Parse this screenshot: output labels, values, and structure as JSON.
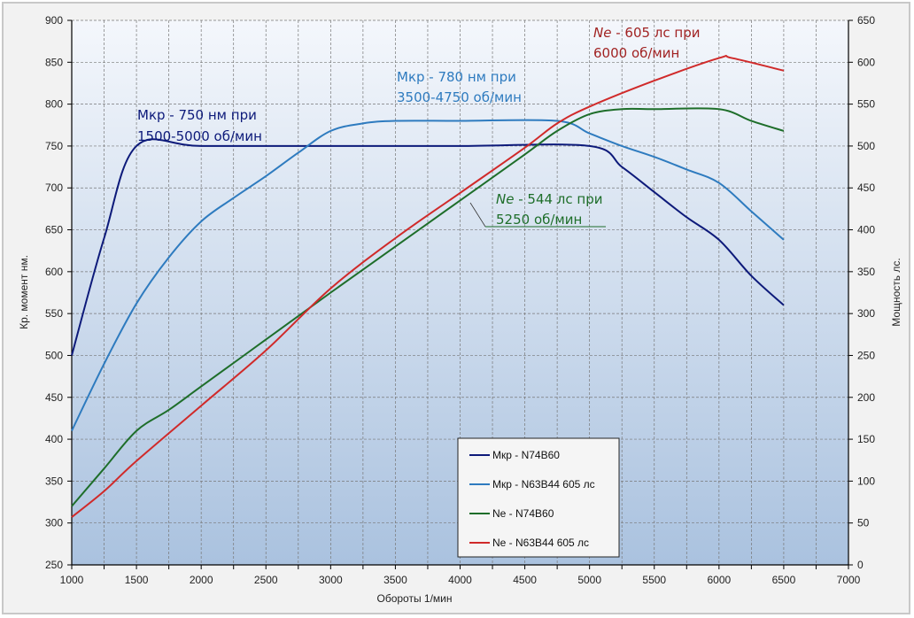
{
  "chart_data": {
    "type": "line",
    "title": "",
    "xlabel": "Обороты  1/мин",
    "ylabel": "Кр.  момент  нм.",
    "y2label": "Мощность  лс.",
    "xlim": [
      1000,
      7000
    ],
    "ylim": [
      250,
      900
    ],
    "y2lim": [
      0,
      650
    ],
    "x_ticks": [
      1000,
      1500,
      2000,
      2500,
      3000,
      3500,
      4000,
      4500,
      5000,
      5500,
      6000,
      6500,
      7000
    ],
    "y_ticks": [
      250,
      300,
      350,
      400,
      450,
      500,
      550,
      600,
      650,
      700,
      750,
      800,
      850,
      900
    ],
    "y2_ticks": [
      0,
      50,
      100,
      150,
      200,
      250,
      300,
      350,
      400,
      450,
      500,
      550,
      600,
      650
    ],
    "grid": true,
    "legend_position": "bottom-center",
    "series": [
      {
        "name": "Мкр - N74B60",
        "axis": "left",
        "color": "#0d1a7a",
        "x": [
          1000,
          1250,
          1500,
          2000,
          3000,
          4000,
          5000,
          5250,
          5500,
          5750,
          6000,
          6250,
          6500
        ],
        "y": [
          500,
          640,
          750,
          750,
          750,
          750,
          750,
          725,
          695,
          665,
          638,
          595,
          560
        ]
      },
      {
        "name": "Мкр - N63B44  605 лс",
        "axis": "left",
        "color": "#2e7bbf",
        "x": [
          1000,
          1250,
          1500,
          1750,
          2000,
          2250,
          2500,
          2750,
          3000,
          3250,
          3500,
          4000,
          4750,
          5000,
          5250,
          5500,
          5750,
          6000,
          6250,
          6500
        ],
        "y": [
          410,
          490,
          562,
          617,
          660,
          688,
          714,
          742,
          768,
          777,
          780,
          780,
          780,
          765,
          750,
          737,
          722,
          706,
          672,
          638
        ]
      },
      {
        "name": "Ne  -  N74B60",
        "axis": "right",
        "color": "#1e6e2a",
        "x": [
          1000,
          1250,
          1500,
          1750,
          2000,
          2500,
          3000,
          3500,
          4000,
          4500,
          4750,
          5000,
          5250,
          5500,
          6000,
          6250,
          6500
        ],
        "y": [
          70,
          115,
          160,
          185,
          213,
          269,
          325,
          380,
          435,
          490,
          518,
          538,
          544,
          544,
          544,
          530,
          518
        ]
      },
      {
        "name": "Ne - N63B44  605 лс",
        "axis": "right",
        "color": "#d02a2a",
        "x": [
          1000,
          1250,
          1500,
          2000,
          2500,
          3000,
          3500,
          4000,
          4500,
          4750,
          5000,
          5500,
          6000,
          6100,
          6500
        ],
        "y": [
          57,
          88,
          124,
          190,
          256,
          330,
          390,
          444,
          498,
          527,
          547,
          578,
          605,
          605,
          590
        ]
      }
    ],
    "annotations": [
      {
        "lines": [
          "Мкр - 750 нм при",
          "1500-5000 об/мин"
        ],
        "color": "#0d1a7a"
      },
      {
        "lines": [
          "Мкр - 780 нм при",
          "3500-4750 об/мин"
        ],
        "color": "#2e7bbf"
      },
      {
        "lines": [
          "Ne",
          " - 605 лс при",
          "6000 об/мин"
        ],
        "color": "#a12323"
      },
      {
        "lines": [
          "Ne",
          " - 544 лс при",
          "5250 об/мин"
        ],
        "color": "#1e6e2a"
      }
    ]
  }
}
